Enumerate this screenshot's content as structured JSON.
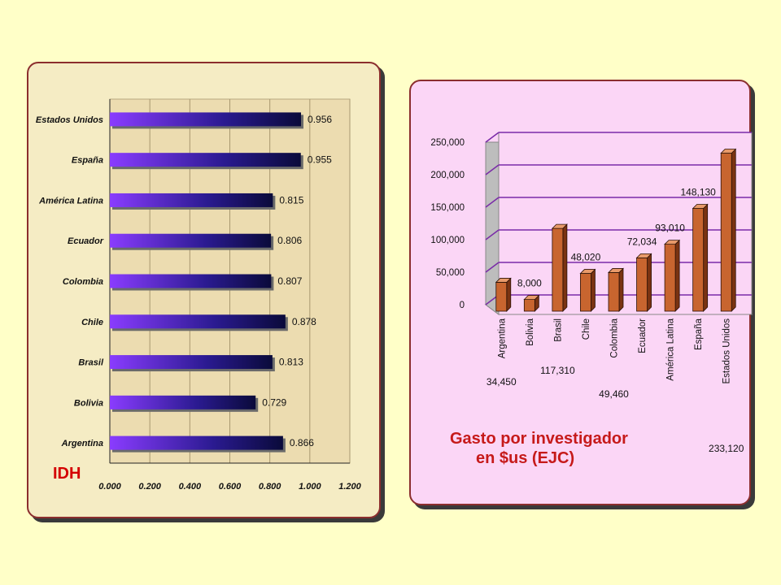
{
  "left_chart": {
    "label": "IDH",
    "chart_data": {
      "type": "bar",
      "orientation": "horizontal",
      "categories": [
        "Estados Unidos",
        "España",
        "América Latina",
        "Ecuador",
        "Colombia",
        "Chile",
        "Brasil",
        "Bolivia",
        "Argentina"
      ],
      "values": [
        0.956,
        0.955,
        0.815,
        0.806,
        0.807,
        0.878,
        0.813,
        0.729,
        0.866
      ],
      "value_labels": [
        "0.956",
        "0.955",
        "0.815",
        "0.806",
        "0.807",
        "0.878",
        "0.813",
        "0.729",
        "0.866"
      ],
      "xlim": [
        0,
        1.2
      ],
      "xticks": [
        "0.000",
        "0.200",
        "0.400",
        "0.600",
        "0.800",
        "1.000",
        "1.200"
      ],
      "grid": true,
      "colors": {
        "bar_start": "#8a3cff",
        "bar_end": "#0a0a3a"
      }
    }
  },
  "right_chart": {
    "title_line1": "Gasto por investigador",
    "title_line2": "en $us (EJC)",
    "chart_data": {
      "type": "bar",
      "style": "3d-columns",
      "categories": [
        "Argentina",
        "Bolivia",
        "Brasil",
        "Chile",
        "Colombia",
        "Ecuador",
        "América Latina",
        "España",
        "Estados Unidos"
      ],
      "values": [
        34450,
        8000,
        117310,
        48020,
        49460,
        72034,
        93010,
        148130,
        233120
      ],
      "value_labels": [
        "34,450",
        "8,000",
        "117,310",
        "48,020",
        "49,460",
        "72,034",
        "93,010",
        "148,130",
        "233,120"
      ],
      "ylim": [
        0,
        250000
      ],
      "yticks": [
        "0",
        "50,000",
        "100,000",
        "150,000",
        "200,000",
        "250,000"
      ],
      "grid": true,
      "colors": {
        "bar": "#c8652f",
        "grid": "#7a2aa8"
      }
    }
  }
}
